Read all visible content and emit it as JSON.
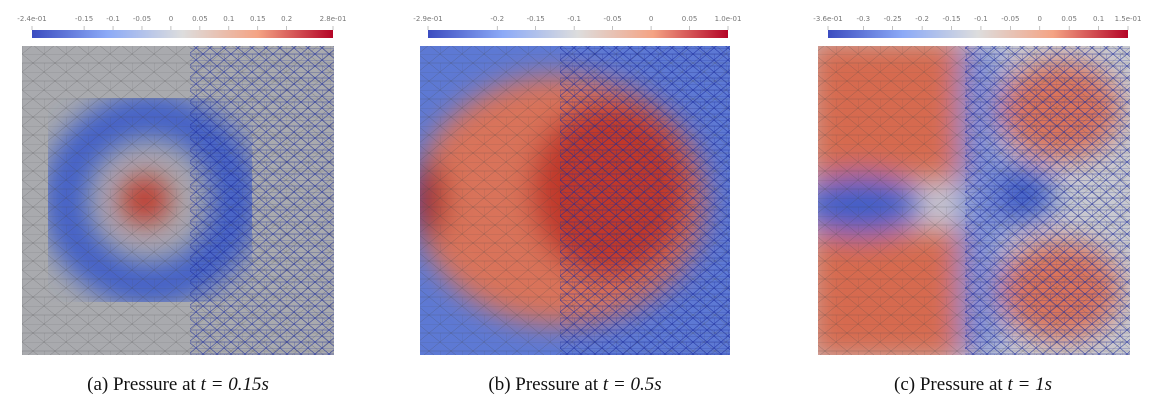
{
  "panels": [
    {
      "caption": {
        "prefix": "(a) Pressure at ",
        "math": "t = 0.15s"
      },
      "colorbar": {
        "range": [
          -0.24,
          0.28
        ],
        "ticks": [
          {
            "value": -0.24,
            "label": "-2.4e-01"
          },
          -0.15,
          -0.1,
          -0.05,
          0,
          0.05,
          0.1,
          0.15,
          0.2,
          {
            "value": 0.28,
            "label": "2.8e-01"
          }
        ]
      }
    },
    {
      "caption": {
        "prefix": "(b) Pressure at ",
        "math": "t = 0.5s"
      },
      "colorbar": {
        "range": [
          -0.29,
          0.1
        ],
        "ticks": [
          {
            "value": -0.29,
            "label": "-2.9e-01"
          },
          -0.2,
          -0.15,
          -0.1,
          -0.05,
          0,
          0.05,
          {
            "value": 0.1,
            "label": "1.0e-01"
          }
        ]
      }
    },
    {
      "caption": {
        "prefix": "(c) Pressure at ",
        "math": "t = 1s"
      },
      "colorbar": {
        "range": [
          -0.36,
          0.15
        ],
        "ticks": [
          {
            "value": -0.36,
            "label": "-3.6e-01"
          },
          -0.3,
          -0.25,
          -0.2,
          -0.15,
          -0.1,
          -0.05,
          0,
          0.05,
          0.1,
          {
            "value": 0.15,
            "label": "1.5e-01"
          }
        ]
      }
    }
  ]
}
